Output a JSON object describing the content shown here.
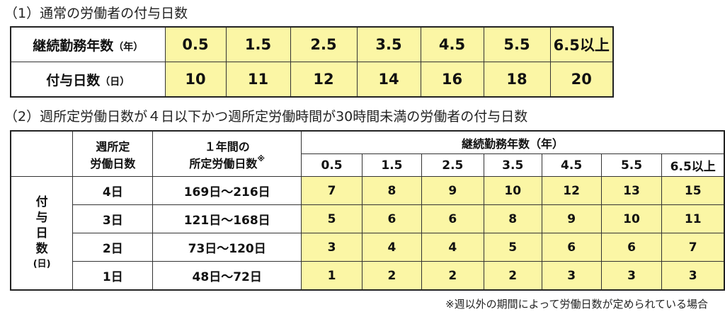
{
  "section1": {
    "heading": "（1）通常の労働者の付与日数",
    "row1_label": "継続勤務年数",
    "row1_unit": "（年）",
    "row2_label": "付与日数",
    "row2_unit": "（日）",
    "years": [
      "0.5",
      "1.5",
      "2.5",
      "3.5",
      "4.5",
      "5.5",
      "6.5以上"
    ],
    "days": [
      "10",
      "11",
      "12",
      "14",
      "16",
      "18",
      "20"
    ]
  },
  "section2": {
    "heading": "（2）週所定労働日数が４日以下かつ週所定労働時間が30時間未満の労働者の付与日数",
    "col_weekly_line1": "週所定",
    "col_weekly_line2": "労働日数",
    "col_annual_line1": "１年間の",
    "col_annual_line2": "所定労働日数",
    "annual_mark": "※",
    "years_header": "継続勤務年数（年）",
    "years": [
      "0.5",
      "1.5",
      "2.5",
      "3.5",
      "4.5",
      "5.5",
      "6.5以上"
    ],
    "side_label_chars": [
      "付",
      "与",
      "日",
      "数"
    ],
    "side_label_unit": "(日)",
    "rows": [
      {
        "weekly": "4日",
        "annual": "169日～216日",
        "values": [
          "7",
          "8",
          "9",
          "10",
          "12",
          "13",
          "15"
        ]
      },
      {
        "weekly": "3日",
        "annual": "121日～168日",
        "values": [
          "5",
          "6",
          "6",
          "8",
          "9",
          "10",
          "11"
        ]
      },
      {
        "weekly": "2日",
        "annual": "73日～120日",
        "values": [
          "3",
          "4",
          "4",
          "5",
          "6",
          "6",
          "7"
        ]
      },
      {
        "weekly": "1日",
        "annual": "48日～72日",
        "values": [
          "1",
          "2",
          "2",
          "2",
          "3",
          "3",
          "3"
        ]
      }
    ],
    "footnote": "※週以外の期間によって労働日数が定められている場合"
  }
}
